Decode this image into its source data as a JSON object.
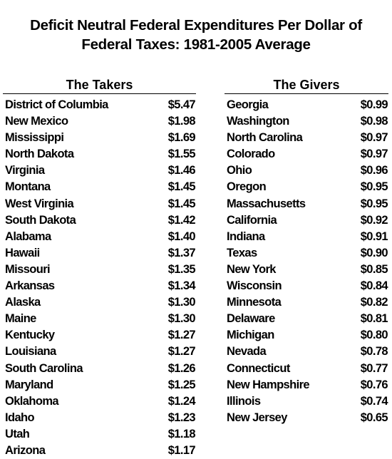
{
  "title": {
    "line1": "Deficit Neutral Federal Expenditures Per Dollar of",
    "line2": "Federal Taxes: 1981-2005 Average"
  },
  "takers": {
    "heading": "The Takers",
    "rows": [
      {
        "state": "District of Columbia",
        "value": "$5.47"
      },
      {
        "state": "New Mexico",
        "value": "$1.98"
      },
      {
        "state": "Mississippi",
        "value": "$1.69"
      },
      {
        "state": "North Dakota",
        "value": "$1.55"
      },
      {
        "state": "Virginia",
        "value": "$1.46"
      },
      {
        "state": "Montana",
        "value": "$1.45"
      },
      {
        "state": "West Virginia",
        "value": "$1.45"
      },
      {
        "state": "South Dakota",
        "value": "$1.42"
      },
      {
        "state": "Alabama",
        "value": "$1.40"
      },
      {
        "state": "Hawaii",
        "value": "$1.37"
      },
      {
        "state": "Missouri",
        "value": "$1.35"
      },
      {
        "state": "Arkansas",
        "value": "$1.34"
      },
      {
        "state": "Alaska",
        "value": "$1.30"
      },
      {
        "state": "Maine",
        "value": "$1.30"
      },
      {
        "state": "Kentucky",
        "value": "$1.27"
      },
      {
        "state": "Louisiana",
        "value": "$1.27"
      },
      {
        "state": "South Carolina",
        "value": "$1.26"
      },
      {
        "state": "Maryland",
        "value": "$1.25"
      },
      {
        "state": "Oklahoma",
        "value": "$1.24"
      },
      {
        "state": "Idaho",
        "value": "$1.23"
      },
      {
        "state": "Utah",
        "value": "$1.18"
      },
      {
        "state": "Arizona",
        "value": "$1.17"
      }
    ]
  },
  "givers": {
    "heading": "The Givers",
    "rows": [
      {
        "state": "Georgia",
        "value": "$0.99"
      },
      {
        "state": "Washington",
        "value": "$0.98"
      },
      {
        "state": "North Carolina",
        "value": "$0.97"
      },
      {
        "state": "Colorado",
        "value": "$0.97"
      },
      {
        "state": "Ohio",
        "value": "$0.96"
      },
      {
        "state": "Oregon",
        "value": "$0.95"
      },
      {
        "state": "Massachusetts",
        "value": "$0.95"
      },
      {
        "state": "California",
        "value": "$0.92"
      },
      {
        "state": "Indiana",
        "value": "$0.91"
      },
      {
        "state": "Texas",
        "value": "$0.90"
      },
      {
        "state": "New York",
        "value": "$0.85"
      },
      {
        "state": "Wisconsin",
        "value": "$0.84"
      },
      {
        "state": "Minnesota",
        "value": "$0.82"
      },
      {
        "state": "Delaware",
        "value": "$0.81"
      },
      {
        "state": "Michigan",
        "value": "$0.80"
      },
      {
        "state": "Nevada",
        "value": "$0.78"
      },
      {
        "state": "Connecticut",
        "value": "$0.77"
      },
      {
        "state": "New Hampshire",
        "value": "$0.76"
      },
      {
        "state": "Illinois",
        "value": "$0.74"
      },
      {
        "state": "New Jersey",
        "value": "$0.65"
      }
    ]
  }
}
